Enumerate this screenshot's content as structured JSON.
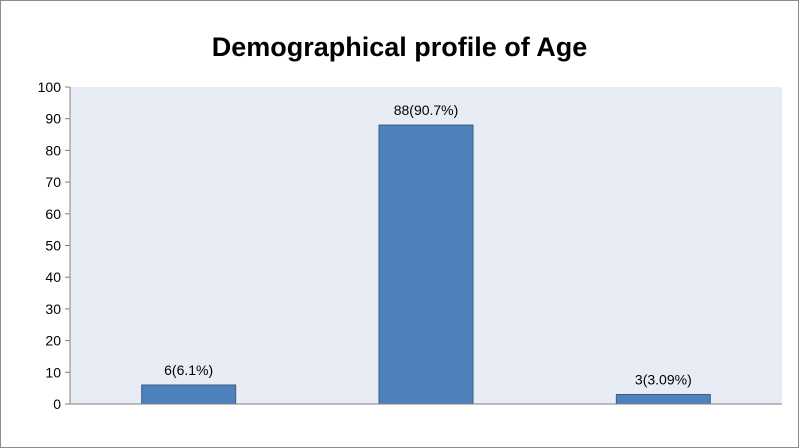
{
  "chart_data": {
    "type": "bar",
    "title": "Demographical profile of Age",
    "categories": [
      "",
      "",
      ""
    ],
    "values": [
      6,
      88,
      3
    ],
    "data_labels": [
      "6(6.1%)",
      "88(90.7%)",
      "3(3.09%)"
    ],
    "ylim": [
      0,
      100
    ],
    "yticks": [
      0,
      10,
      20,
      30,
      40,
      50,
      60,
      70,
      80,
      90,
      100
    ],
    "xlabel": "",
    "ylabel": "",
    "grid": false,
    "legend": "none",
    "colors": {
      "bar": "#4f81bd",
      "bar_border": "#385d8a",
      "plot_background": "#e8edf5",
      "axis": "#808080"
    }
  }
}
